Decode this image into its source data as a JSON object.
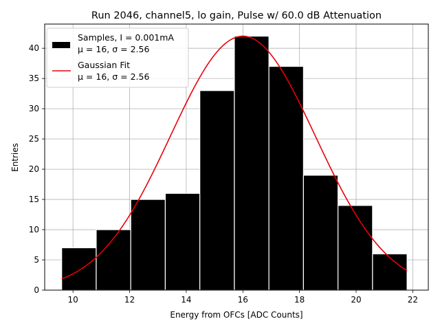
{
  "chart_data": {
    "type": "histogram",
    "title": "Run 2046, channel5, lo gain, Pulse w/ 60.0 dB Attenuation",
    "xlabel": "Energy from OFCs [ADC Counts]",
    "ylabel": "Entries",
    "xlim": [
      9.0,
      22.55
    ],
    "ylim": [
      0,
      44
    ],
    "xticks": [
      10,
      12,
      14,
      16,
      18,
      20,
      22
    ],
    "yticks": [
      0,
      5,
      10,
      15,
      20,
      25,
      30,
      35,
      40
    ],
    "grid": true,
    "legend_position": "upper-left",
    "bins": {
      "edges": [
        9.6,
        10.82,
        12.04,
        13.26,
        14.48,
        15.7,
        16.92,
        18.14,
        19.36,
        20.58,
        21.8
      ],
      "counts": [
        7,
        10,
        15,
        16,
        33,
        42,
        37,
        19,
        14,
        6
      ],
      "color": "#000000",
      "edge_color": "#ffffff"
    },
    "fit": {
      "name": "Gaussian Fit",
      "mu": 16,
      "sigma": 2.56,
      "amplitude": 42,
      "x_range": [
        9.6,
        21.8
      ],
      "color": "#e8000b"
    },
    "legend": [
      {
        "label_line1": "Samples, I = 0.001mA",
        "label_line2": "μ = 16, σ = 2.56",
        "kind": "patch",
        "color": "#000000"
      },
      {
        "label_line1": "Gaussian Fit",
        "label_line2": "μ = 16, σ = 2.56",
        "kind": "line",
        "color": "#e8000b"
      }
    ]
  }
}
